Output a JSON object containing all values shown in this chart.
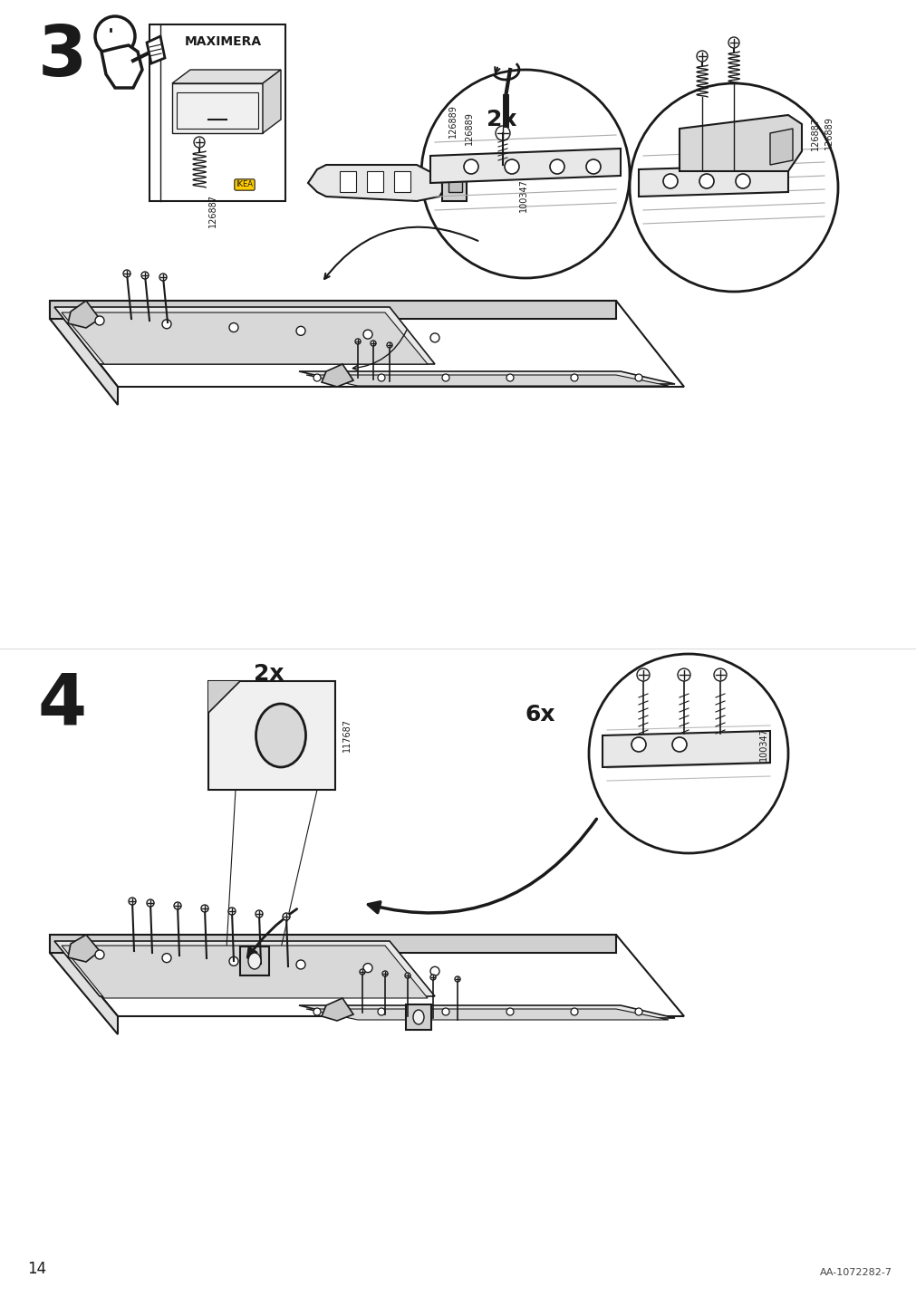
{
  "page_number": "14",
  "doc_number": "AA-1072282-7",
  "background_color": "#ffffff",
  "line_color": "#1a1a1a",
  "step3_number": "3",
  "step4_number": "4",
  "step3_label_2x": "2x",
  "step4_label_2x": "2x",
  "step4_label_6x": "6x",
  "part_126887": "126887",
  "part_126889": "126889",
  "part_100347": "100347",
  "part_117687": "117687",
  "maximera_text": "MAXIMERA"
}
